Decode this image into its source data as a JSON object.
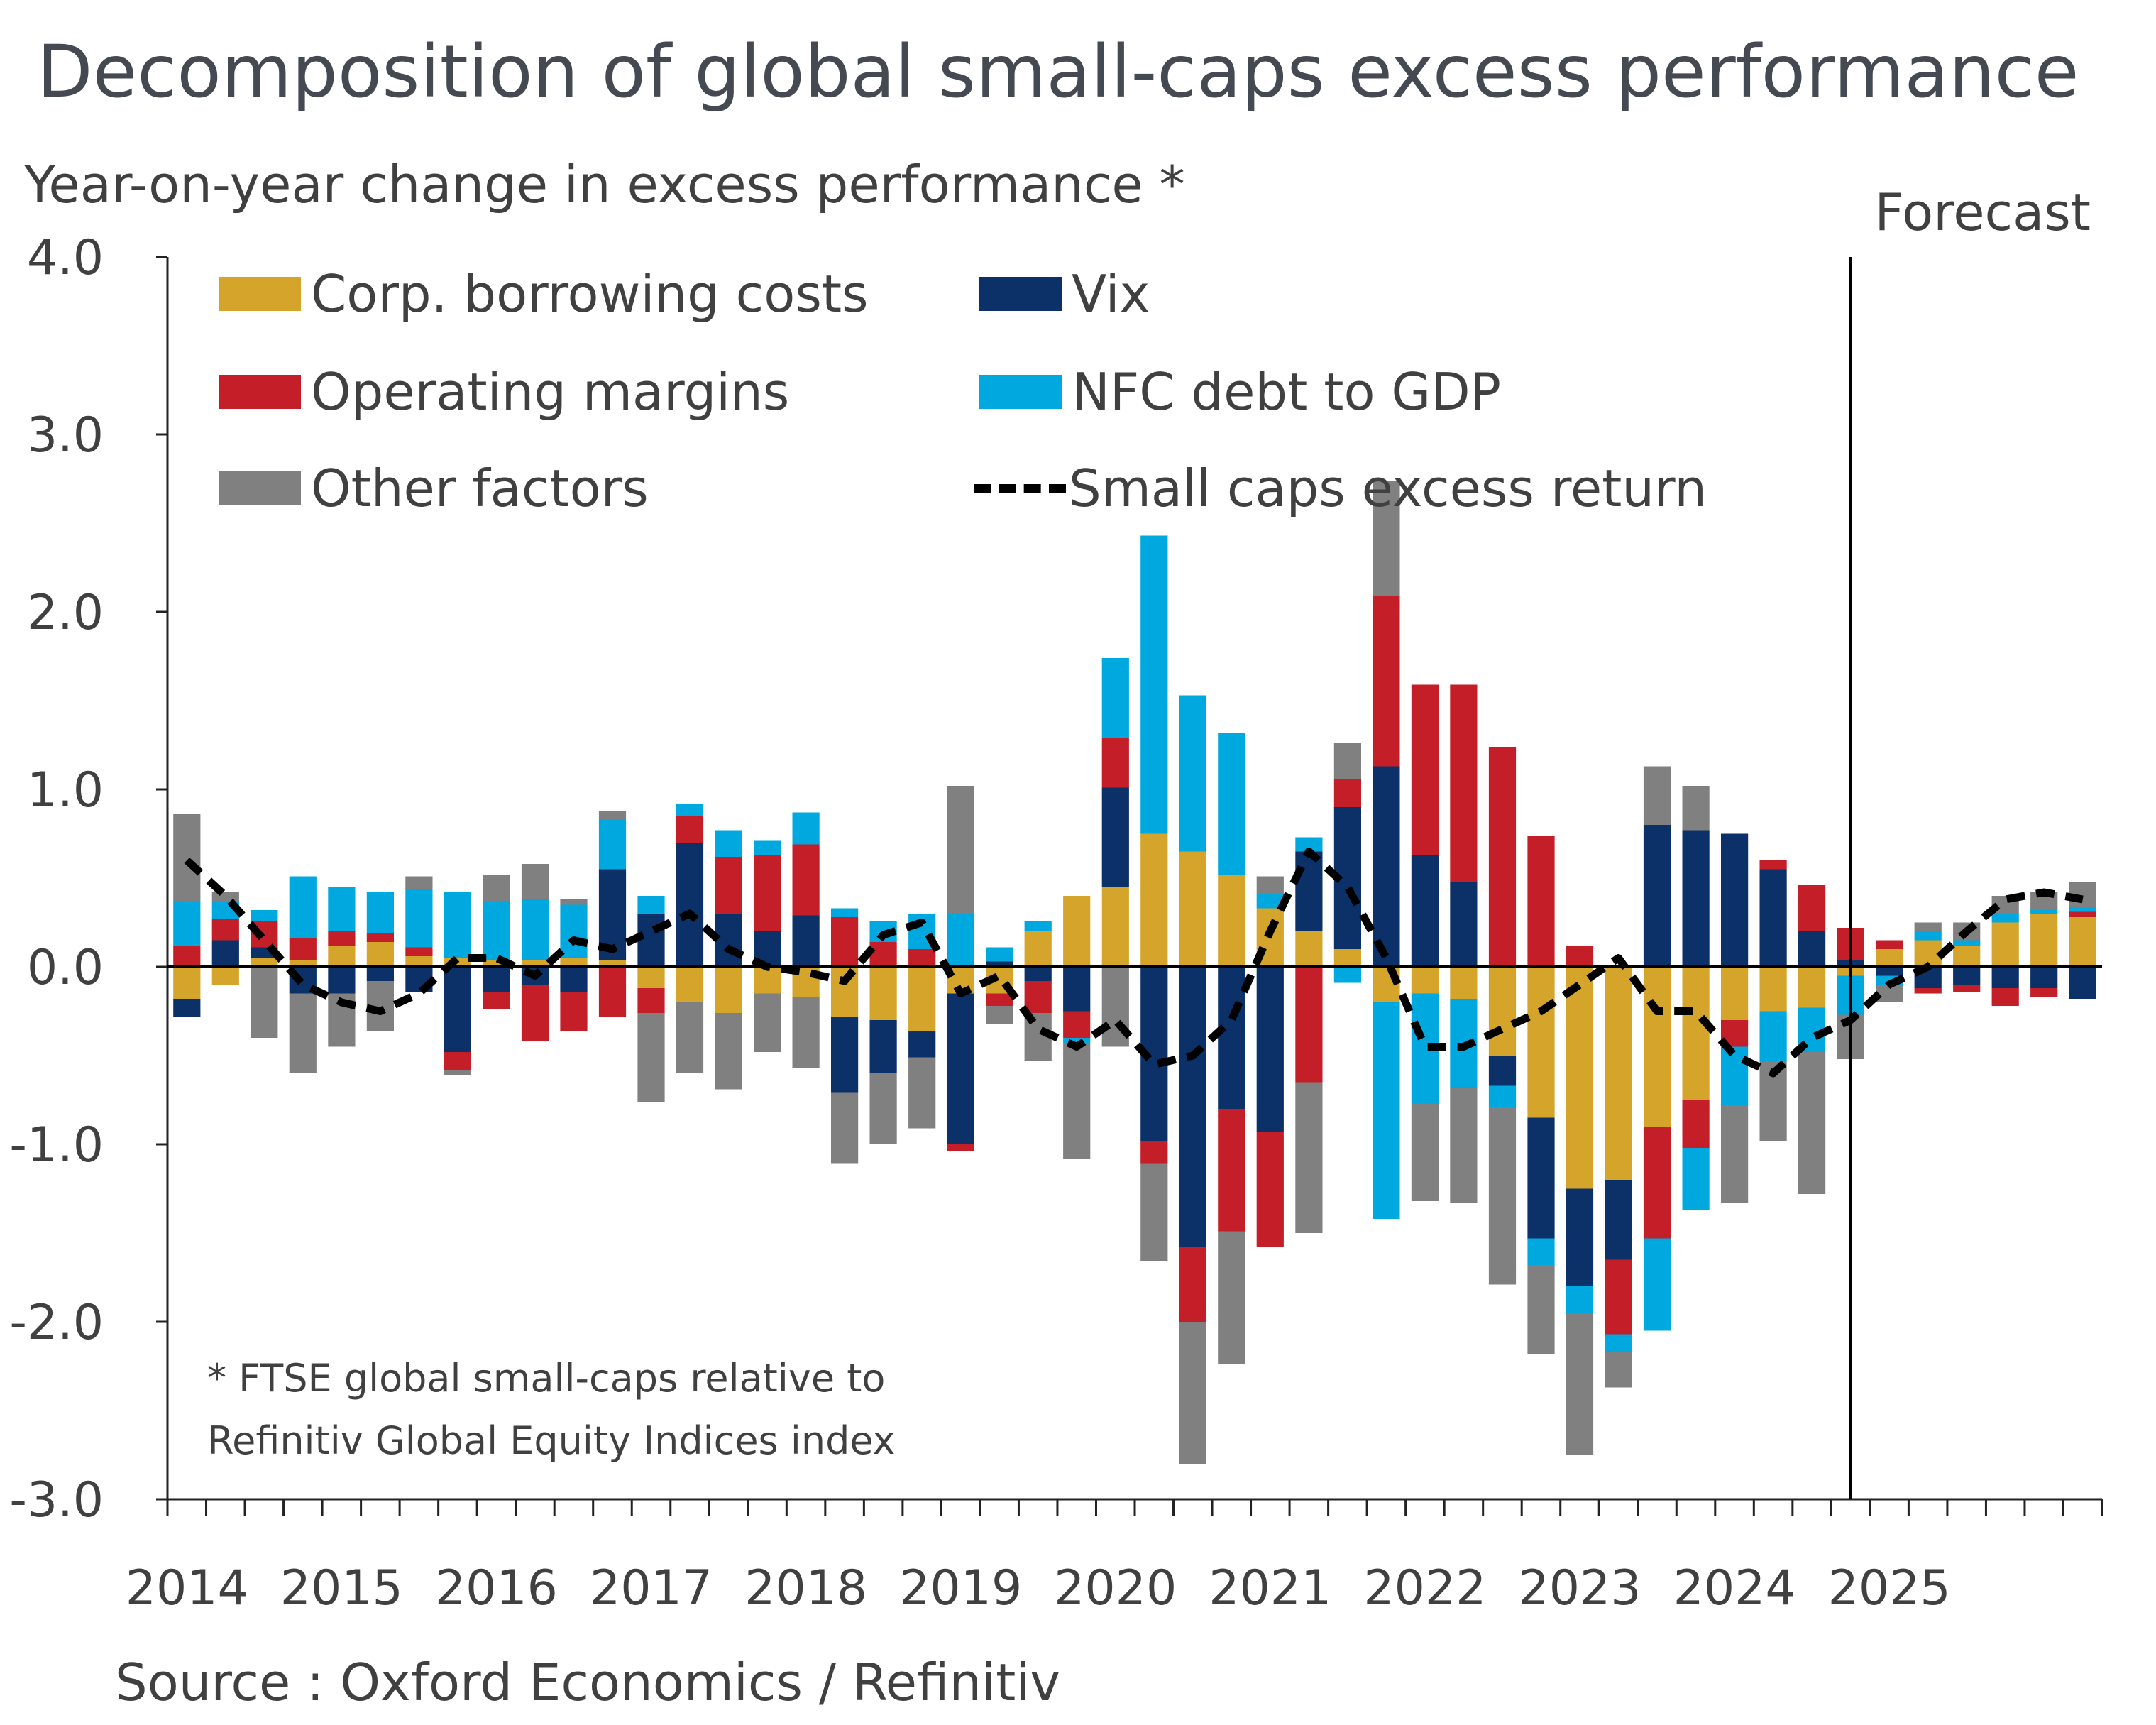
{
  "title": "Decomposition of global small-caps excess performance",
  "subtitle": "Year-on-year change in excess performance *",
  "forecast_label": "Forecast",
  "note_lines": [
    "* FTSE global small-caps relative to",
    "Refinitiv Global Equity Indices index"
  ],
  "source": "Source : Oxford Economics / Refinitiv",
  "chart_data": {
    "type": "bar",
    "stacked": true,
    "title": "Decomposition of global small-caps excess performance",
    "ylabel": "Year-on-year change in excess performance *",
    "ylim": [
      -3.0,
      4.0
    ],
    "yticks": [
      "4.0",
      "3.0",
      "2.0",
      "1.0",
      "0.0",
      "-1.0",
      "-2.0",
      "-3.0"
    ],
    "ytick_values": [
      4,
      3,
      2,
      1,
      0,
      -1,
      -2,
      -3
    ],
    "year_labels": [
      "2014",
      "2015",
      "2016",
      "2017",
      "2018",
      "2019",
      "2020",
      "2021",
      "2022",
      "2023",
      "2024",
      "2025"
    ],
    "periods_per_year": 4,
    "forecast_start_index": 44,
    "legend_position": "top-left",
    "grid": false,
    "series": [
      {
        "name": "Corp. borrowing costs",
        "color": "#d4a52a",
        "values": [
          -0.18,
          -0.1,
          0.05,
          0.04,
          0.12,
          0.14,
          0.06,
          0.05,
          0.04,
          0.04,
          0.05,
          0.04,
          -0.12,
          -0.2,
          -0.26,
          -0.15,
          -0.17,
          -0.28,
          -0.3,
          -0.36,
          -0.15,
          -0.15,
          0.2,
          0.4,
          0.45,
          0.75,
          0.65,
          0.52,
          0.33,
          0.2,
          0.1,
          -0.2,
          -0.15,
          -0.18,
          -0.5,
          -0.85,
          -1.25,
          -1.2,
          -0.9,
          -0.75,
          -0.3,
          -0.25,
          -0.23,
          -0.05,
          0.1,
          0.15,
          0.12,
          0.25,
          0.3,
          0.28
        ]
      },
      {
        "name": "Vix",
        "color": "#0b3168",
        "values": [
          -0.1,
          0.15,
          0.06,
          -0.15,
          -0.15,
          -0.08,
          -0.14,
          -0.48,
          -0.14,
          -0.1,
          -0.14,
          0.51,
          0.3,
          0.7,
          0.3,
          0.2,
          0.29,
          -0.43,
          -0.3,
          -0.15,
          -0.85,
          0.03,
          -0.08,
          -0.25,
          0.56,
          -0.98,
          -1.58,
          -0.8,
          -0.93,
          0.45,
          0.8,
          1.13,
          0.63,
          0.48,
          -0.17,
          -0.68,
          -0.55,
          -0.45,
          0.8,
          0.77,
          0.75,
          0.55,
          0.2,
          0.04,
          -0.05,
          -0.12,
          -0.1,
          -0.12,
          -0.12,
          -0.18
        ]
      },
      {
        "name": "Operating margins",
        "color": "#c41e28",
        "values": [
          0.12,
          0.12,
          0.15,
          0.12,
          0.08,
          0.05,
          0.05,
          -0.1,
          -0.1,
          -0.32,
          -0.22,
          -0.28,
          -0.14,
          0.15,
          0.32,
          0.43,
          0.4,
          0.28,
          0.14,
          0.1,
          -0.04,
          -0.07,
          -0.18,
          -0.15,
          0.28,
          -0.13,
          -0.42,
          -0.69,
          -0.65,
          -0.65,
          0.16,
          0.96,
          0.96,
          1.11,
          1.24,
          0.74,
          0.12,
          -0.42,
          -0.63,
          -0.27,
          -0.15,
          0.05,
          0.26,
          0.18,
          0.05,
          -0.03,
          -0.04,
          -0.1,
          -0.05,
          0.03
        ]
      },
      {
        "name": "NFC debt to GDP",
        "color": "#00a8e0",
        "values": [
          0.25,
          0.1,
          0.06,
          0.35,
          0.25,
          0.23,
          0.33,
          0.37,
          0.33,
          0.34,
          0.3,
          0.28,
          0.1,
          0.07,
          0.15,
          0.08,
          0.18,
          0.05,
          0.12,
          0.2,
          0.3,
          0.08,
          0.06,
          -0.03,
          0.45,
          1.68,
          0.88,
          0.8,
          0.08,
          0.08,
          -0.09,
          -1.22,
          -0.62,
          -0.5,
          -0.12,
          -0.15,
          -0.15,
          -0.1,
          -0.52,
          -0.35,
          -0.33,
          -0.28,
          -0.25,
          -0.22,
          -0.05,
          0.05,
          0.03,
          0.05,
          0.02,
          0.03
        ]
      },
      {
        "name": "Other factors",
        "color": "#808080",
        "values": [
          0.49,
          0.05,
          -0.4,
          -0.45,
          -0.3,
          -0.28,
          0.07,
          -0.03,
          0.15,
          0.2,
          0.03,
          0.05,
          -0.5,
          -0.4,
          -0.43,
          -0.33,
          -0.4,
          -0.4,
          -0.4,
          -0.4,
          0.72,
          -0.1,
          -0.27,
          -0.65,
          -0.45,
          -0.55,
          -0.8,
          -0.75,
          0.1,
          -0.85,
          0.2,
          0.65,
          -0.55,
          -0.65,
          -1.0,
          -0.5,
          -0.8,
          -0.2,
          0.33,
          0.25,
          -0.55,
          -0.45,
          -0.8,
          -0.25,
          -0.1,
          0.05,
          0.1,
          0.1,
          0.1,
          0.14
        ]
      },
      {
        "name": "Small caps excess return",
        "color": "#000000",
        "style": "dashed-line",
        "values": [
          0.6,
          0.4,
          0.15,
          -0.1,
          -0.2,
          -0.25,
          -0.15,
          0.05,
          0.05,
          -0.05,
          0.15,
          0.1,
          0.2,
          0.3,
          0.1,
          0.0,
          -0.03,
          -0.08,
          0.18,
          0.25,
          -0.15,
          -0.05,
          -0.35,
          -0.45,
          -0.3,
          -0.55,
          -0.5,
          -0.3,
          0.2,
          0.65,
          0.45,
          0.05,
          -0.45,
          -0.45,
          -0.35,
          -0.25,
          -0.1,
          0.05,
          -0.25,
          -0.25,
          -0.5,
          -0.6,
          -0.4,
          -0.3,
          -0.1,
          0.0,
          0.2,
          0.38,
          0.42,
          0.38
        ]
      }
    ]
  }
}
